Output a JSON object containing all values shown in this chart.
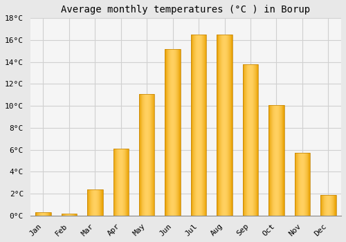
{
  "months": [
    "Jan",
    "Feb",
    "Mar",
    "Apr",
    "May",
    "Jun",
    "Jul",
    "Aug",
    "Sep",
    "Oct",
    "Nov",
    "Dec"
  ],
  "values": [
    0.3,
    0.2,
    2.4,
    6.1,
    11.1,
    15.2,
    16.5,
    16.5,
    13.8,
    10.1,
    5.7,
    1.9
  ],
  "bar_color_left": "#E8A000",
  "bar_color_center": "#FFD060",
  "bar_color_right": "#E8A000",
  "title": "Average monthly temperatures (°C ) in Borup",
  "ylim": [
    0,
    18
  ],
  "yticks": [
    0,
    2,
    4,
    6,
    8,
    10,
    12,
    14,
    16,
    18
  ],
  "ytick_labels": [
    "0°C",
    "2°C",
    "4°C",
    "6°C",
    "8°C",
    "10°C",
    "12°C",
    "14°C",
    "16°C",
    "18°C"
  ],
  "background_color": "#e8e8e8",
  "plot_bg_color": "#f5f5f5",
  "grid_color": "#d0d0d0",
  "title_fontsize": 10,
  "tick_fontsize": 8,
  "font_family": "monospace",
  "bar_width": 0.6
}
